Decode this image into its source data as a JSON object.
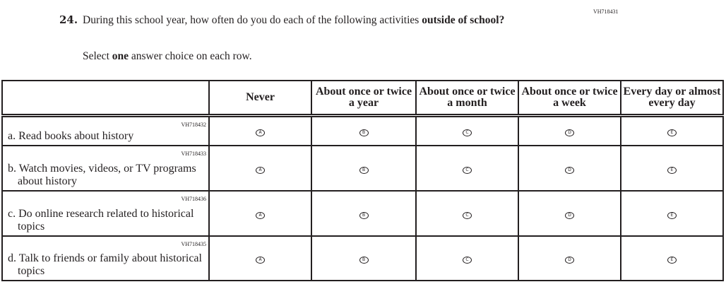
{
  "question": {
    "id": "VH718431",
    "number": "24.",
    "text_before": "During this school year, how often do you do each of the following activities ",
    "text_bold": "outside of school",
    "text_after": "?",
    "instruction_before": "Select ",
    "instruction_bold": "one",
    "instruction_after": " answer choice on each row."
  },
  "columns": [
    "Never",
    "About once or twice a year",
    "About once or twice a month",
    "About once or twice a week",
    "Every day or almost every day"
  ],
  "options": [
    "A",
    "B",
    "C",
    "D",
    "E"
  ],
  "rows": [
    {
      "id": "VH718432",
      "label": "a. Read books about history"
    },
    {
      "id": "VH718433",
      "label": "b. Watch movies, videos, or TV programs about history"
    },
    {
      "id": "VH718436",
      "label": "c. Do online research related to historical topics"
    },
    {
      "id": "VH718435",
      "label": "d. Talk to friends or family about historical topics"
    }
  ]
}
